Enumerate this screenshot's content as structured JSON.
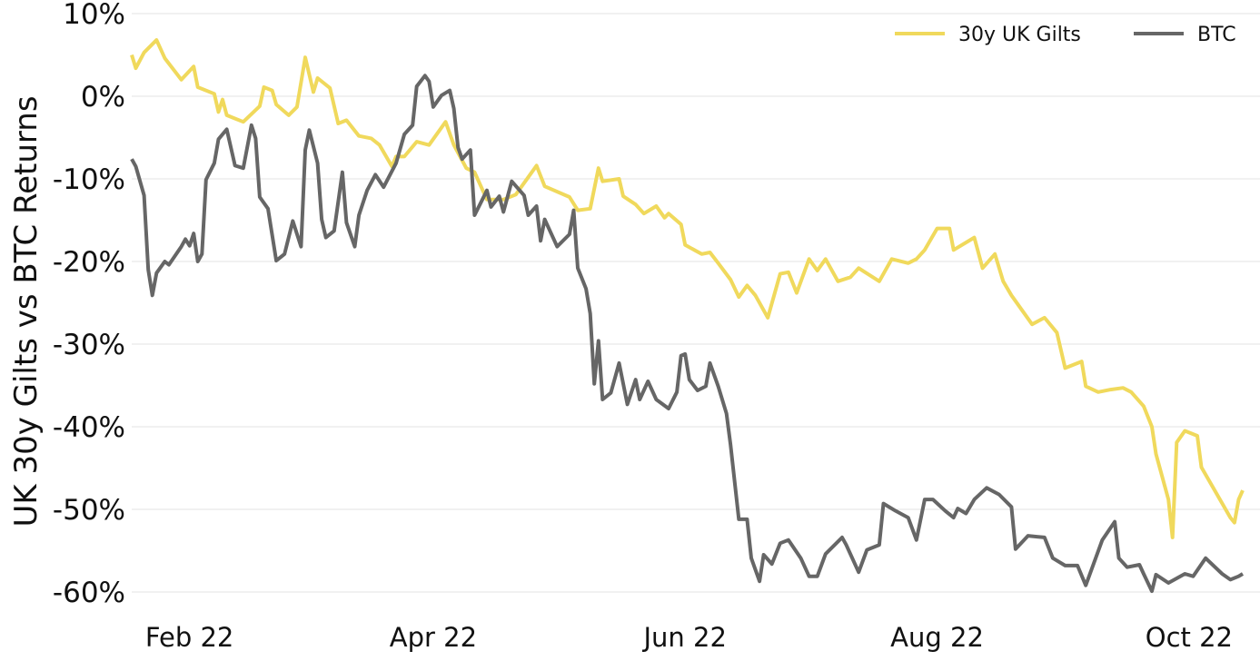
{
  "chart_data": {
    "type": "line",
    "title": "",
    "xlabel": "",
    "ylabel": "UK 30y Gilts vs BTC Returns",
    "xlim": [
      "2022-01-18",
      "2022-10-14"
    ],
    "ylim": [
      -60,
      10
    ],
    "grid": true,
    "legend_position": "top-right",
    "x_ticks": [
      {
        "date": "2022-02-01",
        "label": "Feb 22"
      },
      {
        "date": "2022-04-01",
        "label": "Apr 22"
      },
      {
        "date": "2022-06-01",
        "label": "Jun 22"
      },
      {
        "date": "2022-08-01",
        "label": "Aug 22"
      },
      {
        "date": "2022-10-01",
        "label": "Oct 22"
      }
    ],
    "y_ticks": [
      {
        "value": 10,
        "label": "10%"
      },
      {
        "value": 0,
        "label": "0%"
      },
      {
        "value": -10,
        "label": "-10%"
      },
      {
        "value": -20,
        "label": "-20%"
      },
      {
        "value": -30,
        "label": "-30%"
      },
      {
        "value": -40,
        "label": "-40%"
      },
      {
        "value": -50,
        "label": "-50%"
      },
      {
        "value": -60,
        "label": "-60%"
      }
    ],
    "series": [
      {
        "name": "30y UK Gilts",
        "color": "#f0d95c",
        "points": [
          [
            "2022-01-18",
            5.0
          ],
          [
            "2022-01-19",
            3.4
          ],
          [
            "2022-01-21",
            5.3
          ],
          [
            "2022-01-24",
            6.8
          ],
          [
            "2022-01-26",
            4.6
          ],
          [
            "2022-01-30",
            2.0
          ],
          [
            "2022-02-02",
            3.6
          ],
          [
            "2022-02-03",
            1.1
          ],
          [
            "2022-02-07",
            0.3
          ],
          [
            "2022-02-08",
            -1.9
          ],
          [
            "2022-02-09",
            -0.4
          ],
          [
            "2022-02-10",
            -2.3
          ],
          [
            "2022-02-14",
            -3.1
          ],
          [
            "2022-02-18",
            -1.2
          ],
          [
            "2022-02-19",
            1.1
          ],
          [
            "2022-02-21",
            0.7
          ],
          [
            "2022-02-22",
            -1.0
          ],
          [
            "2022-02-25",
            -2.3
          ],
          [
            "2022-02-27",
            -1.3
          ],
          [
            "2022-03-01",
            4.7
          ],
          [
            "2022-03-03",
            0.5
          ],
          [
            "2022-03-04",
            2.2
          ],
          [
            "2022-03-07",
            1.0
          ],
          [
            "2022-03-09",
            -3.3
          ],
          [
            "2022-03-11",
            -2.9
          ],
          [
            "2022-03-14",
            -4.8
          ],
          [
            "2022-03-17",
            -5.1
          ],
          [
            "2022-03-19",
            -5.9
          ],
          [
            "2022-03-22",
            -8.5
          ],
          [
            "2022-03-23",
            -7.3
          ],
          [
            "2022-03-25",
            -7.3
          ],
          [
            "2022-03-28",
            -5.5
          ],
          [
            "2022-03-31",
            -5.9
          ],
          [
            "2022-04-04",
            -3.1
          ],
          [
            "2022-04-06",
            -5.9
          ],
          [
            "2022-04-09",
            -8.7
          ],
          [
            "2022-04-11",
            -9.2
          ],
          [
            "2022-04-14",
            -12.5
          ],
          [
            "2022-04-18",
            -12.5
          ],
          [
            "2022-04-21",
            -11.9
          ],
          [
            "2022-04-26",
            -8.4
          ],
          [
            "2022-04-28",
            -10.9
          ],
          [
            "2022-05-04",
            -12.2
          ],
          [
            "2022-05-06",
            -13.8
          ],
          [
            "2022-05-09",
            -13.6
          ],
          [
            "2022-05-11",
            -8.7
          ],
          [
            "2022-05-12",
            -10.3
          ],
          [
            "2022-05-16",
            -10.0
          ],
          [
            "2022-05-17",
            -12.1
          ],
          [
            "2022-05-20",
            -13.1
          ],
          [
            "2022-05-22",
            -14.2
          ],
          [
            "2022-05-25",
            -13.3
          ],
          [
            "2022-05-27",
            -14.7
          ],
          [
            "2022-05-28",
            -14.2
          ],
          [
            "2022-05-31",
            -15.5
          ],
          [
            "2022-06-01",
            -18.0
          ],
          [
            "2022-06-05",
            -19.1
          ],
          [
            "2022-06-07",
            -18.9
          ],
          [
            "2022-06-09",
            -20.2
          ],
          [
            "2022-06-12",
            -22.2
          ],
          [
            "2022-06-14",
            -24.3
          ],
          [
            "2022-06-16",
            -22.9
          ],
          [
            "2022-06-18",
            -24.1
          ],
          [
            "2022-06-21",
            -26.8
          ],
          [
            "2022-06-24",
            -21.5
          ],
          [
            "2022-06-26",
            -21.3
          ],
          [
            "2022-06-28",
            -23.8
          ],
          [
            "2022-07-01",
            -19.7
          ],
          [
            "2022-07-03",
            -21.1
          ],
          [
            "2022-07-05",
            -19.7
          ],
          [
            "2022-07-08",
            -22.4
          ],
          [
            "2022-07-11",
            -21.9
          ],
          [
            "2022-07-13",
            -20.8
          ],
          [
            "2022-07-18",
            -22.4
          ],
          [
            "2022-07-21",
            -19.7
          ],
          [
            "2022-07-25",
            -20.2
          ],
          [
            "2022-07-27",
            -19.7
          ],
          [
            "2022-07-29",
            -18.6
          ],
          [
            "2022-08-01",
            -16.0
          ],
          [
            "2022-08-04",
            -16.0
          ],
          [
            "2022-08-05",
            -18.6
          ],
          [
            "2022-08-10",
            -17.1
          ],
          [
            "2022-08-12",
            -20.8
          ],
          [
            "2022-08-15",
            -19.1
          ],
          [
            "2022-08-17",
            -22.4
          ],
          [
            "2022-08-19",
            -24.1
          ],
          [
            "2022-08-24",
            -27.6
          ],
          [
            "2022-08-27",
            -26.8
          ],
          [
            "2022-08-30",
            -28.6
          ],
          [
            "2022-09-01",
            -32.9
          ],
          [
            "2022-09-05",
            -32.1
          ],
          [
            "2022-09-06",
            -35.1
          ],
          [
            "2022-09-09",
            -35.8
          ],
          [
            "2022-09-12",
            -35.5
          ],
          [
            "2022-09-15",
            -35.3
          ],
          [
            "2022-09-17",
            -35.8
          ],
          [
            "2022-09-20",
            -37.5
          ],
          [
            "2022-09-22",
            -40.0
          ],
          [
            "2022-09-23",
            -43.3
          ],
          [
            "2022-09-26",
            -48.8
          ],
          [
            "2022-09-27",
            -53.4
          ],
          [
            "2022-09-28",
            -41.9
          ],
          [
            "2022-09-30",
            -40.5
          ],
          [
            "2022-10-03",
            -41.1
          ],
          [
            "2022-10-04",
            -44.9
          ],
          [
            "2022-10-11",
            -51.0
          ],
          [
            "2022-10-12",
            -51.6
          ],
          [
            "2022-10-13",
            -48.8
          ],
          [
            "2022-10-14",
            -47.7
          ]
        ]
      },
      {
        "name": "BTC",
        "color": "#666666",
        "points": [
          [
            "2022-01-18",
            -7.6
          ],
          [
            "2022-01-19",
            -8.5
          ],
          [
            "2022-01-21",
            -12.0
          ],
          [
            "2022-01-22",
            -21.0
          ],
          [
            "2022-01-23",
            -24.1
          ],
          [
            "2022-01-24",
            -21.4
          ],
          [
            "2022-01-26",
            -20.0
          ],
          [
            "2022-01-27",
            -20.4
          ],
          [
            "2022-01-30",
            -18.2
          ],
          [
            "2022-01-31",
            -17.3
          ],
          [
            "2022-02-01",
            -18.1
          ],
          [
            "2022-02-02",
            -16.6
          ],
          [
            "2022-02-03",
            -20.0
          ],
          [
            "2022-02-04",
            -19.1
          ],
          [
            "2022-02-05",
            -10.1
          ],
          [
            "2022-02-07",
            -8.1
          ],
          [
            "2022-02-08",
            -5.2
          ],
          [
            "2022-02-10",
            -4.0
          ],
          [
            "2022-02-12",
            -8.4
          ],
          [
            "2022-02-14",
            -8.7
          ],
          [
            "2022-02-16",
            -3.5
          ],
          [
            "2022-02-17",
            -5.1
          ],
          [
            "2022-02-18",
            -12.2
          ],
          [
            "2022-02-20",
            -13.6
          ],
          [
            "2022-02-22",
            -19.9
          ],
          [
            "2022-02-24",
            -19.1
          ],
          [
            "2022-02-26",
            -15.1
          ],
          [
            "2022-02-28",
            -18.2
          ],
          [
            "2022-03-01",
            -6.5
          ],
          [
            "2022-03-02",
            -4.1
          ],
          [
            "2022-03-04",
            -8.1
          ],
          [
            "2022-03-05",
            -14.9
          ],
          [
            "2022-03-06",
            -17.1
          ],
          [
            "2022-03-08",
            -16.3
          ],
          [
            "2022-03-10",
            -9.2
          ],
          [
            "2022-03-11",
            -15.3
          ],
          [
            "2022-03-13",
            -18.2
          ],
          [
            "2022-03-14",
            -14.4
          ],
          [
            "2022-03-16",
            -11.4
          ],
          [
            "2022-03-18",
            -9.5
          ],
          [
            "2022-03-20",
            -11.0
          ],
          [
            "2022-03-23",
            -8.1
          ],
          [
            "2022-03-25",
            -4.6
          ],
          [
            "2022-03-27",
            -3.5
          ],
          [
            "2022-03-28",
            1.2
          ],
          [
            "2022-03-30",
            2.5
          ],
          [
            "2022-03-31",
            1.8
          ],
          [
            "2022-04-01",
            -1.3
          ],
          [
            "2022-04-03",
            0.1
          ],
          [
            "2022-04-05",
            0.7
          ],
          [
            "2022-04-06",
            -1.5
          ],
          [
            "2022-04-07",
            -6.2
          ],
          [
            "2022-04-08",
            -7.6
          ],
          [
            "2022-04-10",
            -6.5
          ],
          [
            "2022-04-11",
            -14.4
          ],
          [
            "2022-04-14",
            -11.4
          ],
          [
            "2022-04-15",
            -13.4
          ],
          [
            "2022-04-17",
            -12.1
          ],
          [
            "2022-04-18",
            -14.0
          ],
          [
            "2022-04-20",
            -10.3
          ],
          [
            "2022-04-23",
            -12.0
          ],
          [
            "2022-04-24",
            -14.4
          ],
          [
            "2022-04-26",
            -13.3
          ],
          [
            "2022-04-27",
            -17.5
          ],
          [
            "2022-04-28",
            -14.9
          ],
          [
            "2022-05-01",
            -18.2
          ],
          [
            "2022-05-04",
            -16.7
          ],
          [
            "2022-05-05",
            -13.8
          ],
          [
            "2022-05-06",
            -20.8
          ],
          [
            "2022-05-08",
            -23.3
          ],
          [
            "2022-05-09",
            -26.3
          ],
          [
            "2022-05-10",
            -34.8
          ],
          [
            "2022-05-11",
            -29.6
          ],
          [
            "2022-05-12",
            -36.7
          ],
          [
            "2022-05-14",
            -35.9
          ],
          [
            "2022-05-16",
            -32.3
          ],
          [
            "2022-05-18",
            -37.3
          ],
          [
            "2022-05-20",
            -34.3
          ],
          [
            "2022-05-21",
            -36.7
          ],
          [
            "2022-05-23",
            -34.5
          ],
          [
            "2022-05-25",
            -36.7
          ],
          [
            "2022-05-28",
            -37.8
          ],
          [
            "2022-05-30",
            -35.8
          ],
          [
            "2022-05-31",
            -31.4
          ],
          [
            "2022-06-01",
            -31.2
          ],
          [
            "2022-06-02",
            -34.3
          ],
          [
            "2022-06-04",
            -35.6
          ],
          [
            "2022-06-06",
            -35.1
          ],
          [
            "2022-06-07",
            -32.3
          ],
          [
            "2022-06-09",
            -35.1
          ],
          [
            "2022-06-11",
            -38.4
          ],
          [
            "2022-06-12",
            -42.2
          ],
          [
            "2022-06-14",
            -51.2
          ],
          [
            "2022-06-16",
            -51.2
          ],
          [
            "2022-06-17",
            -55.9
          ],
          [
            "2022-06-19",
            -58.7
          ],
          [
            "2022-06-20",
            -55.5
          ],
          [
            "2022-06-22",
            -56.6
          ],
          [
            "2022-06-24",
            -54.1
          ],
          [
            "2022-06-26",
            -53.7
          ],
          [
            "2022-06-29",
            -55.9
          ],
          [
            "2022-07-01",
            -58.1
          ],
          [
            "2022-07-03",
            -58.1
          ],
          [
            "2022-07-05",
            -55.4
          ],
          [
            "2022-07-09",
            -53.4
          ],
          [
            "2022-07-10",
            -54.3
          ],
          [
            "2022-07-13",
            -57.6
          ],
          [
            "2022-07-15",
            -54.9
          ],
          [
            "2022-07-18",
            -54.3
          ],
          [
            "2022-07-19",
            -49.3
          ],
          [
            "2022-07-22",
            -50.2
          ],
          [
            "2022-07-25",
            -51.0
          ],
          [
            "2022-07-27",
            -53.7
          ],
          [
            "2022-07-29",
            -48.8
          ],
          [
            "2022-07-31",
            -48.8
          ],
          [
            "2022-08-03",
            -50.2
          ],
          [
            "2022-08-05",
            -51.0
          ],
          [
            "2022-08-06",
            -49.9
          ],
          [
            "2022-08-08",
            -50.5
          ],
          [
            "2022-08-10",
            -48.8
          ],
          [
            "2022-08-13",
            -47.4
          ],
          [
            "2022-08-16",
            -48.2
          ],
          [
            "2022-08-19",
            -49.7
          ],
          [
            "2022-08-20",
            -54.8
          ],
          [
            "2022-08-23",
            -53.2
          ],
          [
            "2022-08-27",
            -53.4
          ],
          [
            "2022-08-29",
            -55.9
          ],
          [
            "2022-09-01",
            -56.8
          ],
          [
            "2022-09-04",
            -56.8
          ],
          [
            "2022-09-06",
            -59.2
          ],
          [
            "2022-09-10",
            -53.7
          ],
          [
            "2022-09-13",
            -51.5
          ],
          [
            "2022-09-14",
            -55.9
          ],
          [
            "2022-09-16",
            -57.0
          ],
          [
            "2022-09-19",
            -56.7
          ],
          [
            "2022-09-20",
            -57.8
          ],
          [
            "2022-09-22",
            -59.9
          ],
          [
            "2022-09-23",
            -57.9
          ],
          [
            "2022-09-26",
            -58.9
          ],
          [
            "2022-09-30",
            -57.8
          ],
          [
            "2022-10-02",
            -58.1
          ],
          [
            "2022-10-05",
            -55.9
          ],
          [
            "2022-10-09",
            -57.8
          ],
          [
            "2022-10-11",
            -58.5
          ],
          [
            "2022-10-13",
            -58.1
          ],
          [
            "2022-10-14",
            -57.8
          ]
        ]
      }
    ]
  }
}
